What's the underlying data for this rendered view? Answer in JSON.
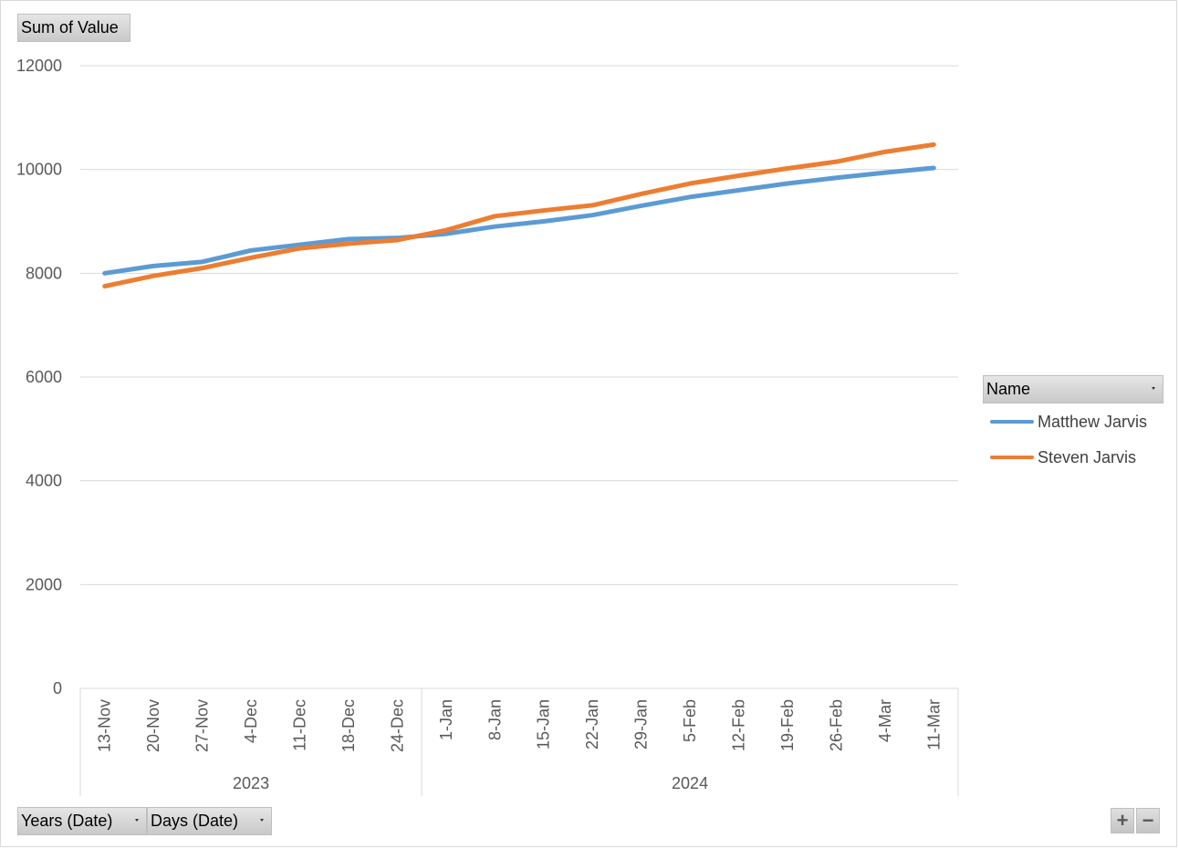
{
  "value_field_label": "Sum of Value",
  "legend_field_label": "Name",
  "axis_field_buttons": [
    "Years (Date)",
    "Days (Date)"
  ],
  "zoom_controls": {
    "plus": "+",
    "minus": "−"
  },
  "colors": {
    "Matthew Jarvis": "#5b9bd5",
    "Steven Jarvis": "#ed7d31"
  },
  "chart_data": {
    "type": "line",
    "title": "",
    "xlabel": "",
    "ylabel": "",
    "ylim": [
      0,
      12000
    ],
    "yticks": [
      0,
      2000,
      4000,
      6000,
      8000,
      10000,
      12000
    ],
    "grid": true,
    "legend_position": "right",
    "groups": [
      {
        "label": "2023",
        "count": 7
      },
      {
        "label": "2024",
        "count": 11
      }
    ],
    "categories": [
      "13-Nov",
      "20-Nov",
      "27-Nov",
      "4-Dec",
      "11-Dec",
      "18-Dec",
      "24-Dec",
      "1-Jan",
      "8-Jan",
      "15-Jan",
      "22-Jan",
      "29-Jan",
      "5-Feb",
      "12-Feb",
      "19-Feb",
      "26-Feb",
      "4-Mar",
      "11-Mar"
    ],
    "series": [
      {
        "name": "Matthew Jarvis",
        "values": [
          8000,
          8140,
          8220,
          8440,
          8550,
          8660,
          8680,
          8760,
          8900,
          9000,
          9120,
          9300,
          9470,
          9600,
          9730,
          9840,
          9940,
          10030
        ]
      },
      {
        "name": "Steven Jarvis",
        "values": [
          7750,
          7950,
          8100,
          8300,
          8480,
          8570,
          8640,
          8830,
          9100,
          9210,
          9310,
          9530,
          9730,
          9880,
          10020,
          10150,
          10340,
          10480
        ]
      }
    ]
  }
}
